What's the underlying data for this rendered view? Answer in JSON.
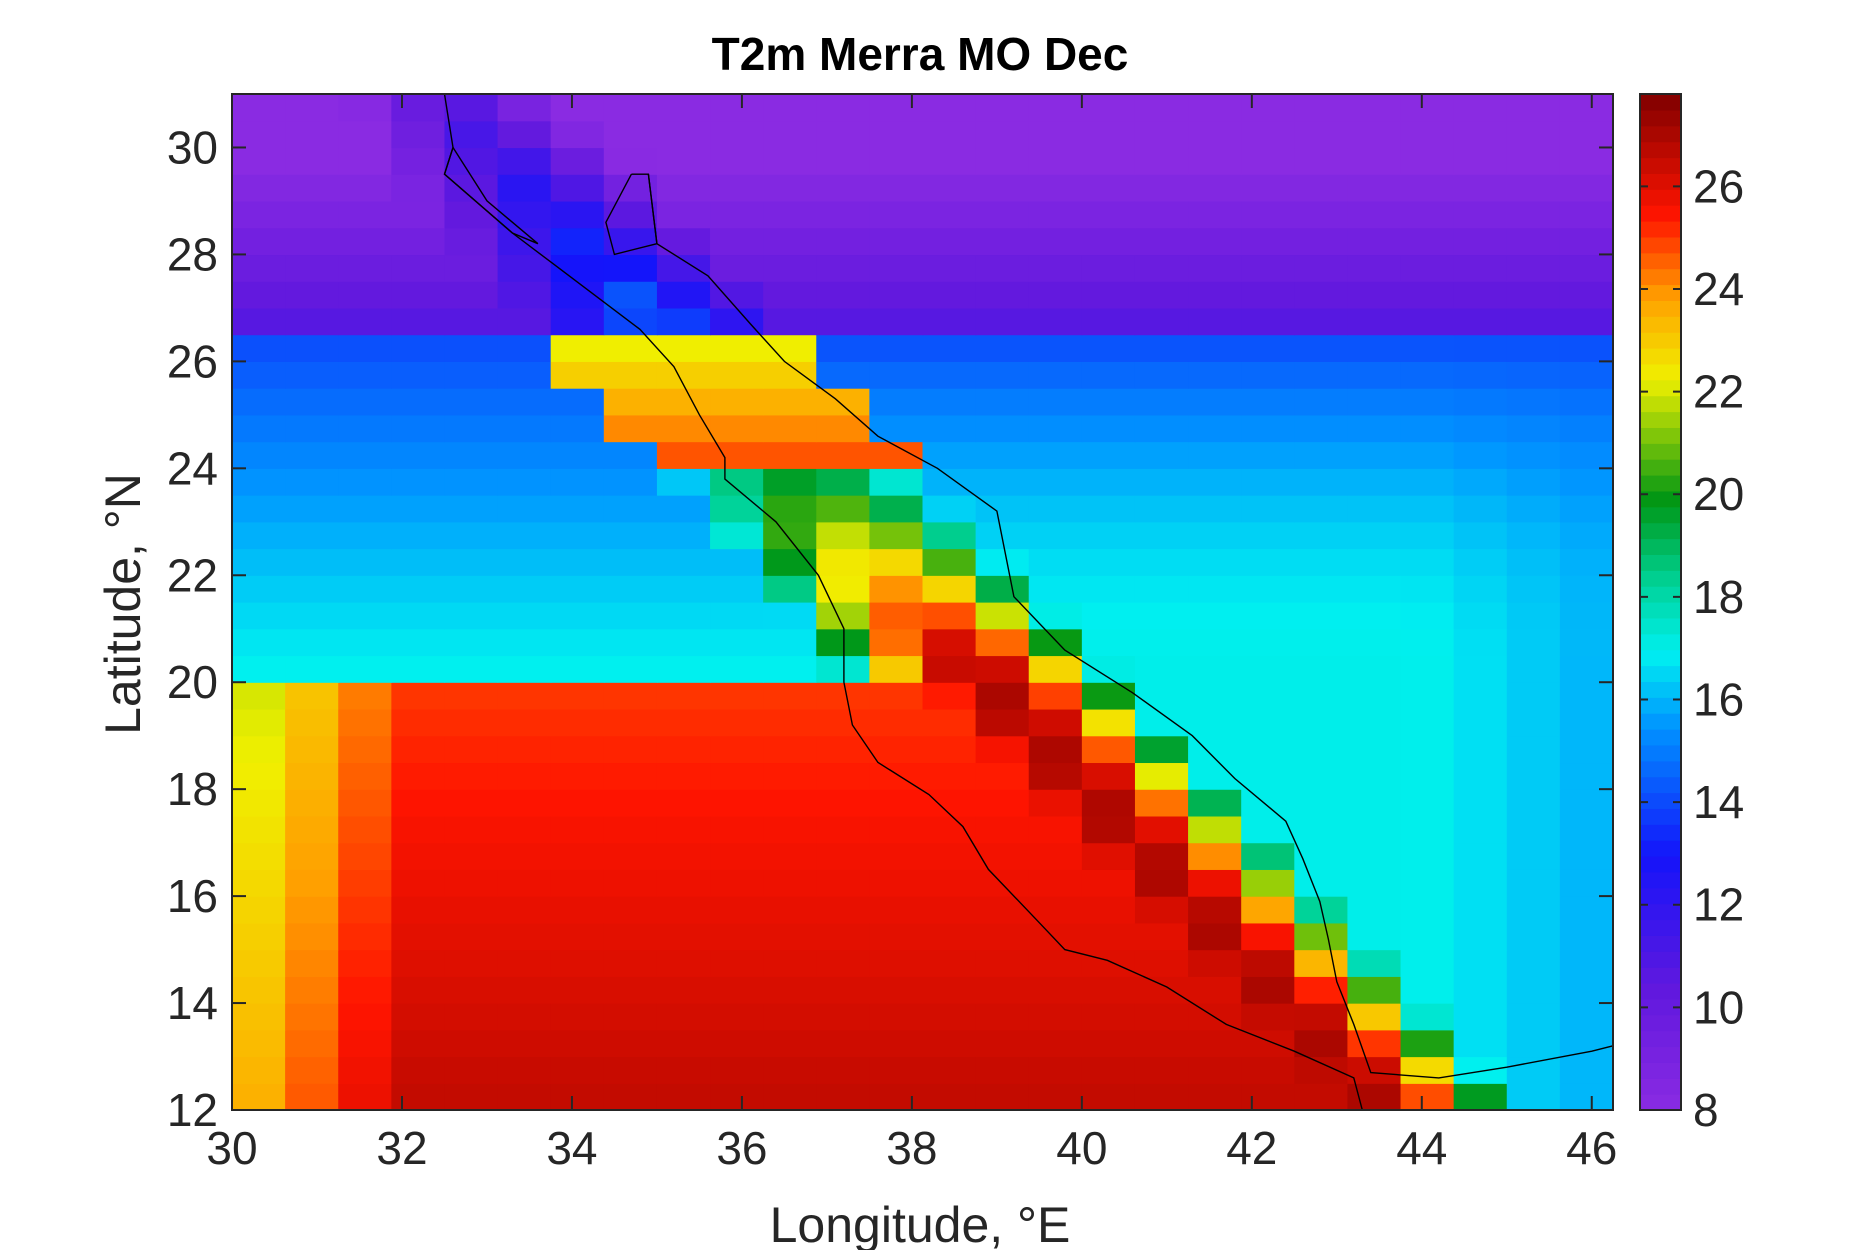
{
  "chart_data": {
    "type": "heatmap",
    "title": "T2m Merra MO Dec",
    "xlabel": "Longitude, °E",
    "ylabel": "Latitude, °N",
    "xlim": [
      30,
      46.25
    ],
    "ylim": [
      12,
      31
    ],
    "x_ticks": [
      30,
      32,
      34,
      36,
      38,
      40,
      42,
      44,
      46
    ],
    "y_ticks": [
      12,
      14,
      16,
      18,
      20,
      22,
      24,
      26,
      28,
      30
    ],
    "colorbar": {
      "range": [
        8,
        27.8
      ],
      "ticks": [
        8,
        10,
        12,
        14,
        16,
        18,
        20,
        22,
        24,
        26
      ],
      "colormap": "jet-like (purple → blue → cyan → green → yellow → red → dark red)"
    },
    "grid_spacing": {
      "lon": 0.625,
      "lat": 0.5
    },
    "field_model": {
      "description": "approximate December 2 m air temperature (°C); values estimated from colors",
      "northern_cold_purple": 10,
      "cool_blue_band": 14,
      "sea_axis_peak": 27,
      "southern_african_interior": 25,
      "arabian_highlands_low": 14
    },
    "coastline": {
      "african_coast": [
        [
          32.5,
          31
        ],
        [
          32.6,
          30
        ],
        [
          32.5,
          29.5
        ],
        [
          33.3,
          28.4
        ],
        [
          33.8,
          27.8
        ],
        [
          34.3,
          27.2
        ],
        [
          34.8,
          26.6
        ],
        [
          35.2,
          25.9
        ],
        [
          35.5,
          25.0
        ],
        [
          35.8,
          24.2
        ],
        [
          35.8,
          23.8
        ],
        [
          36.4,
          23.0
        ],
        [
          36.9,
          22.0
        ],
        [
          37.2,
          21.0
        ],
        [
          37.2,
          20.0
        ],
        [
          37.3,
          19.2
        ],
        [
          37.6,
          18.5
        ],
        [
          38.2,
          17.9
        ],
        [
          38.6,
          17.3
        ],
        [
          38.9,
          16.5
        ],
        [
          39.5,
          15.5
        ],
        [
          39.8,
          15.0
        ],
        [
          40.3,
          14.8
        ],
        [
          41.0,
          14.3
        ],
        [
          41.7,
          13.6
        ],
        [
          42.5,
          13.1
        ],
        [
          43.2,
          12.6
        ],
        [
          43.3,
          12.0
        ]
      ],
      "arabian_coast": [
        [
          34.9,
          29.5
        ],
        [
          35.0,
          28.2
        ],
        [
          35.6,
          27.6
        ],
        [
          36.1,
          26.7
        ],
        [
          36.5,
          26.0
        ],
        [
          37.1,
          25.3
        ],
        [
          37.6,
          24.6
        ],
        [
          38.3,
          24.0
        ],
        [
          39.0,
          23.2
        ],
        [
          39.1,
          22.4
        ],
        [
          39.2,
          21.6
        ],
        [
          39.8,
          20.6
        ],
        [
          40.6,
          19.8
        ],
        [
          41.3,
          19.0
        ],
        [
          41.8,
          18.2
        ],
        [
          42.4,
          17.4
        ],
        [
          42.6,
          16.7
        ],
        [
          42.8,
          15.9
        ],
        [
          42.9,
          15.2
        ],
        [
          43.0,
          14.4
        ],
        [
          43.2,
          13.6
        ],
        [
          43.4,
          12.7
        ],
        [
          44.2,
          12.6
        ],
        [
          45.0,
          12.8
        ],
        [
          46.0,
          13.1
        ],
        [
          46.25,
          13.2
        ]
      ],
      "gulf_of_aqaba": [
        [
          34.7,
          29.5
        ],
        [
          34.9,
          29.5
        ],
        [
          35.0,
          28.2
        ],
        [
          34.5,
          28.0
        ],
        [
          34.4,
          28.6
        ],
        [
          34.7,
          29.5
        ]
      ],
      "gulf_of_suez": [
        [
          32.6,
          30.0
        ],
        [
          32.5,
          29.5
        ],
        [
          33.3,
          28.4
        ],
        [
          33.6,
          28.2
        ],
        [
          33.0,
          29.0
        ],
        [
          32.6,
          30.0
        ]
      ]
    }
  }
}
